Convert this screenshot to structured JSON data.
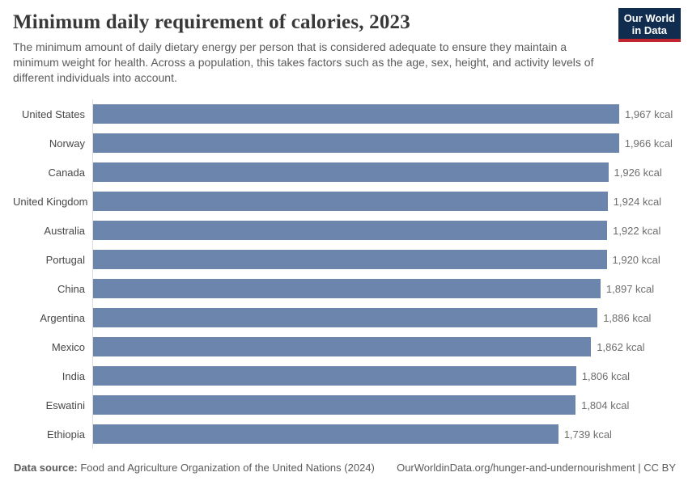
{
  "header": {
    "title": "Minimum daily requirement of calories, 2023",
    "subtitle": "The minimum amount of daily dietary energy per person that is considered adequate to ensure they maintain a minimum weight for health. Across a population, this takes factors such as the age, sex, height, and activity levels of different individuals into account.",
    "logo": {
      "line1": "Our World",
      "line2": "in Data",
      "bg_color": "#102d50",
      "stripe_color": "#c1252d"
    }
  },
  "chart_data": {
    "type": "bar",
    "orientation": "horizontal",
    "title": "Minimum daily requirement of calories, 2023",
    "unit": "kcal",
    "categories": [
      "United States",
      "Norway",
      "Canada",
      "United Kingdom",
      "Australia",
      "Portugal",
      "China",
      "Argentina",
      "Mexico",
      "India",
      "Eswatini",
      "Ethiopia"
    ],
    "values": [
      1967,
      1966,
      1926,
      1924,
      1922,
      1920,
      1897,
      1886,
      1862,
      1806,
      1804,
      1739
    ],
    "value_labels": [
      "1,967 kcal",
      "1,966 kcal",
      "1,926 kcal",
      "1,924 kcal",
      "1,922 kcal",
      "1,920 kcal",
      "1,897 kcal",
      "1,886 kcal",
      "1,862 kcal",
      "1,806 kcal",
      "1,804 kcal",
      "1,739 kcal"
    ],
    "xlabel": "",
    "ylabel": "",
    "xlim": [
      0,
      1967
    ],
    "bar_color": "#6c85ad",
    "axis_line_color": "#dcdcdc",
    "grid": false,
    "legend": "none"
  },
  "footer": {
    "datasource_label": "Data source:",
    "datasource_text": " Food and Agriculture Organization of the United Nations (2024)",
    "link_text": "OurWorldinData.org/hunger-and-undernourishment | CC BY"
  }
}
